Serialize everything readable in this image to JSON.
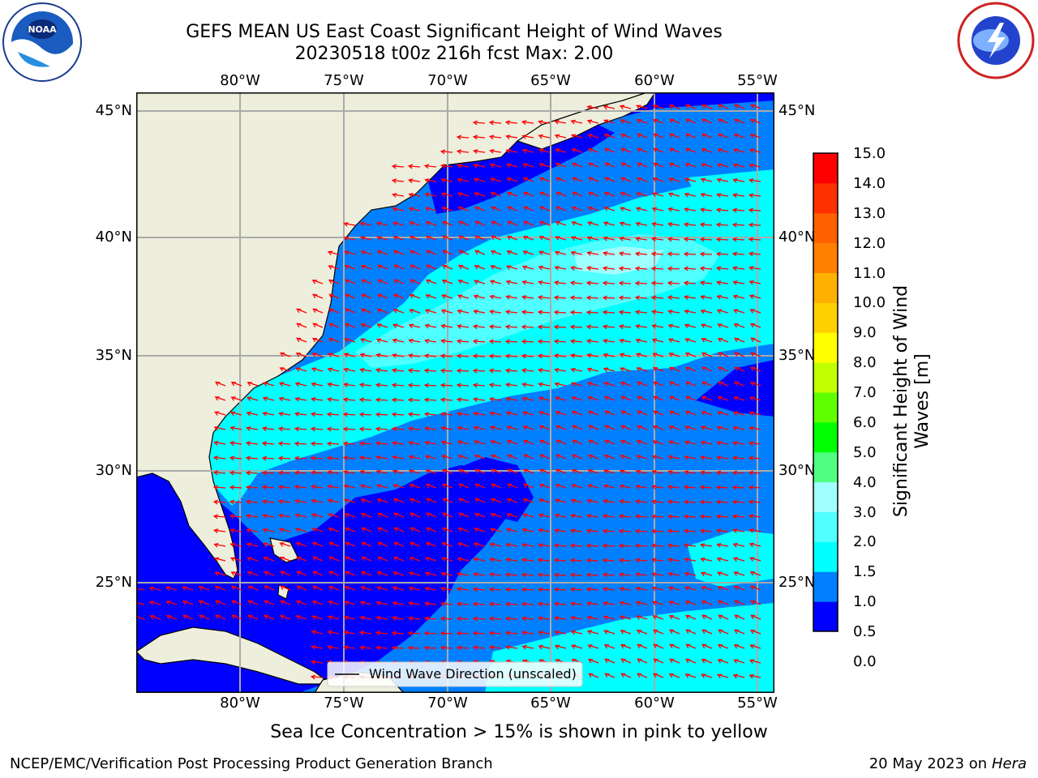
{
  "title": {
    "line1": "GEFS MEAN US East Coast Significant Height of Wind Waves",
    "line2": "20230518 t00z 216h fcst   Max: 2.00"
  },
  "axes": {
    "lon_labels": [
      "80°W",
      "75°W",
      "70°W",
      "65°W",
      "60°W",
      "55°W"
    ],
    "lat_labels": [
      "45°N",
      "40°N",
      "35°N",
      "30°N",
      "25°N"
    ]
  },
  "colorbar": {
    "label": "Significant Height of Wind Waves [m]",
    "ticks": [
      "15.0",
      "14.0",
      "13.0",
      "12.0",
      "11.0",
      "10.0",
      "9.0",
      "8.0",
      "7.0",
      "6.0",
      "5.0",
      "4.0",
      "3.0",
      "2.0",
      "1.5",
      "1.0",
      "0.5",
      "0.0"
    ],
    "colors": [
      "#0000ff",
      "#0080ff",
      "#00ffff",
      "#50ffff",
      "#a0ffff",
      "#50ff80",
      "#00ff00",
      "#60ff00",
      "#c0ff00",
      "#ffff00",
      "#ffd000",
      "#ffb000",
      "#ff8000",
      "#ff6000",
      "#ff3000",
      "#ff0000"
    ]
  },
  "legend": {
    "label": "Wind Wave Direction (unscaled)"
  },
  "caption": "Sea Ice Concentration > 15% is shown in pink to yellow",
  "footer": {
    "left": "NCEP/EMC/Verification Post Processing Product Generation Branch",
    "right_date": "20 May 2023 on",
    "right_host": "Hera"
  },
  "colors": {
    "land": "#eeeedd",
    "arrows": "#ff0000",
    "grid": "#aaaaaa"
  }
}
